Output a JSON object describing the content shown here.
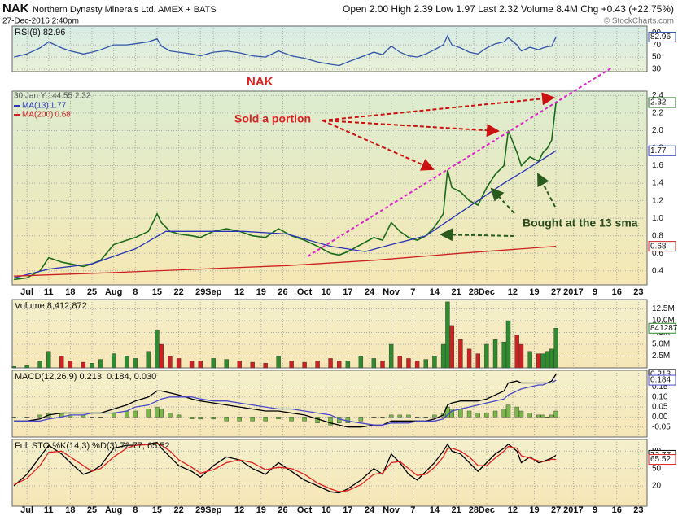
{
  "header": {
    "symbol": "NAK",
    "name": "Northern Dynasty Minerals Ltd. AMEX + BATS",
    "date": "27-Dec-2016 2:40pm",
    "quote": "Open 2.00 High 2.39 Low 1.97 Last 2.32 Volume 8.4M Chg +0.43 (+22.75%)",
    "source": "© StockCharts.com"
  },
  "chart_data": {
    "type": "stock",
    "x": [
      -3,
      0,
      3,
      5,
      8,
      10,
      13,
      15,
      17,
      20,
      23,
      25,
      28,
      30,
      31,
      33,
      35,
      38,
      40,
      43,
      46,
      49,
      52,
      55,
      58,
      61,
      64,
      67,
      70,
      72,
      74,
      77,
      80,
      82,
      84,
      86,
      88,
      90,
      92,
      94,
      96,
      97,
      98,
      100,
      102,
      104,
      106,
      108,
      110,
      111,
      113,
      114,
      116,
      118,
      119,
      120,
      121,
      122
    ],
    "xlim": [
      -3.4,
      143
    ],
    "xticks": [
      {
        "value": 0,
        "label": "Jul"
      },
      {
        "value": 5,
        "label": "11"
      },
      {
        "value": 10,
        "label": "18"
      },
      {
        "value": 15,
        "label": "25"
      },
      {
        "value": 20,
        "label": "Aug"
      },
      {
        "value": 25,
        "label": "8"
      },
      {
        "value": 30,
        "label": "15"
      },
      {
        "value": 35,
        "label": "22"
      },
      {
        "value": 40,
        "label": "29"
      },
      {
        "value": 43,
        "label": "Sep"
      },
      {
        "value": 49,
        "label": "12"
      },
      {
        "value": 54,
        "label": "19"
      },
      {
        "value": 59,
        "label": "26"
      },
      {
        "value": 64,
        "label": "Oct"
      },
      {
        "value": 69,
        "label": "10"
      },
      {
        "value": 74,
        "label": "17"
      },
      {
        "value": 79,
        "label": "24"
      },
      {
        "value": 84,
        "label": "Nov"
      },
      {
        "value": 89,
        "label": "7"
      },
      {
        "value": 94,
        "label": "14"
      },
      {
        "value": 99,
        "label": "21"
      },
      {
        "value": 103,
        "label": "28"
      },
      {
        "value": 106,
        "label": "Dec"
      },
      {
        "value": 112,
        "label": "12"
      },
      {
        "value": 117,
        "label": "19"
      },
      {
        "value": 122,
        "label": "27"
      },
      {
        "value": 126,
        "label": "2017"
      },
      {
        "value": 131,
        "label": "9"
      },
      {
        "value": 136,
        "label": "16"
      },
      {
        "value": 141,
        "label": "23"
      }
    ],
    "grid": true,
    "panels": [
      {
        "type": "line",
        "label": "RSI(9) 82.96",
        "ylim": [
          26,
          101
        ],
        "yticks": [
          30,
          50,
          70,
          90
        ],
        "series": [
          {
            "color": "#3355aa",
            "label_last": true,
            "values": [
              50,
              55,
              65,
              75,
              65,
              60,
              55,
              58,
              62,
              70,
              70,
              72,
              75,
              80,
              68,
              60,
              58,
              55,
              52,
              58,
              60,
              57,
              52,
              50,
              60,
              52,
              48,
              42,
              38,
              36,
              42,
              50,
              58,
              54,
              68,
              58,
              52,
              50,
              55,
              62,
              70,
              85,
              70,
              65,
              58,
              55,
              65,
              72,
              75,
              82,
              70,
              60,
              66,
              62,
              65,
              67,
              68,
              82.96
            ]
          }
        ]
      },
      {
        "type": "line",
        "ylim": [
          0.24,
          2.45
        ],
        "yticks": [
          0.4,
          0.6,
          0.8,
          {
            "value": 1.0,
            "label": "1.0"
          },
          1.2,
          1.4,
          1.6,
          1.8,
          {
            "value": 2.0,
            "label": "2.0"
          },
          2.2,
          2.4
        ],
        "annotations": [
          "NAK",
          "30 Jan Y:144.55 2.32",
          "Sold a portion",
          "Bought at the 13 sma"
        ],
        "series": [
          {
            "color": "#1a6b1a",
            "label_last": true,
            "values": [
              0.3,
              0.32,
              0.4,
              0.55,
              0.5,
              0.48,
              0.45,
              0.48,
              0.52,
              0.7,
              0.75,
              0.78,
              0.85,
              1.05,
              0.95,
              0.85,
              0.82,
              0.8,
              0.78,
              0.85,
              0.88,
              0.85,
              0.8,
              0.78,
              0.88,
              0.8,
              0.75,
              0.68,
              0.6,
              0.58,
              0.62,
              0.7,
              0.78,
              0.75,
              0.95,
              0.85,
              0.78,
              0.75,
              0.8,
              0.9,
              1.05,
              1.55,
              1.35,
              1.3,
              1.2,
              1.15,
              1.35,
              1.5,
              1.6,
              2.0,
              1.75,
              1.6,
              1.7,
              1.65,
              1.75,
              1.8,
              1.89,
              2.32
            ]
          },
          {
            "name": "MA(13)",
            "color": "#2a35b5",
            "label_last": true,
            "x": [
              -3,
              5,
              15,
              25,
              32,
              40,
              50,
              60,
              70,
              78,
              84,
              92,
              98,
              104,
              110,
              116,
              122
            ],
            "values": [
              0.32,
              0.42,
              0.48,
              0.65,
              0.85,
              0.85,
              0.85,
              0.82,
              0.68,
              0.62,
              0.7,
              0.8,
              1.0,
              1.2,
              1.4,
              1.58,
              1.77
            ]
          },
          {
            "name": "MA(200)",
            "color": "#cc2222",
            "label_last": true,
            "x": [
              -3,
              20,
              40,
              60,
              80,
              100,
              122
            ],
            "values": [
              0.34,
              0.38,
              0.42,
              0.46,
              0.52,
              0.6,
              0.68
            ]
          }
        ]
      },
      {
        "type": "bar",
        "label": "Volume 8,412,872",
        "ylim": [
          0,
          14500000
        ],
        "up_color": "#2e8b2e",
        "down_color": "#cc2222",
        "yticks": [
          {
            "value": 2500000,
            "label": "2.5M"
          },
          {
            "value": 5000000,
            "label": "5.0M"
          },
          {
            "value": 7500000,
            "label": "7.5M"
          },
          {
            "value": 10000000,
            "label": "10.0M"
          },
          {
            "value": 12500000,
            "label": "12.5M"
          }
        ],
        "series": [
          {
            "label_last": true,
            "color": "#2e8b2e",
            "values": [
              300000,
              500000,
              1500000,
              3500000,
              2500000,
              1500000,
              1200000,
              1000000,
              1800000,
              3000000,
              2500000,
              2000000,
              3500000,
              8000000,
              5000000,
              2500000,
              2000000,
              1500000,
              1500000,
              2000000,
              1800000,
              1500000,
              1200000,
              1000000,
              2500000,
              1500000,
              1200000,
              1500000,
              2000000,
              1500000,
              1500000,
              2500000,
              2000000,
              1500000,
              5000000,
              2500000,
              2000000,
              1500000,
              1800000,
              2500000,
              5000000,
              14000000,
              9000000,
              6000000,
              4000000,
              3000000,
              5000000,
              6000000,
              5500000,
              10000000,
              7000000,
              5000000,
              3500000,
              3000000,
              3000000,
              3500000,
              4000000,
              8412872
            ]
          }
        ]
      },
      {
        "type": "line",
        "label": "MACD(12,26,9) 0.213, 0.184, 0.030",
        "ylim": [
          -0.1,
          0.233
        ],
        "yticks": [
          -0.05,
          {
            "value": 0,
            "label": "0.00"
          },
          0.05,
          {
            "value": 0.1,
            "label": "0.10"
          },
          0.15
        ],
        "series": [
          {
            "type": "bar",
            "color": "#7ab84a",
            "values": [
              0,
              0,
              0.01,
              0.02,
              0.02,
              0.01,
              0.01,
              0,
              0,
              0.02,
              0.03,
              0.03,
              0.04,
              0.05,
              0.04,
              0.02,
              0.01,
              -0.01,
              -0.01,
              -0.01,
              -0.02,
              -0.02,
              -0.02,
              -0.02,
              -0.01,
              -0.02,
              -0.02,
              -0.03,
              -0.04,
              -0.03,
              -0.03,
              -0.02,
              0,
              0,
              0.01,
              0.01,
              0.01,
              0,
              0,
              0.01,
              0.02,
              0.05,
              0.04,
              0.04,
              0.03,
              0.02,
              0.02,
              0.03,
              0.04,
              0.06,
              0.05,
              0.03,
              0.02,
              0.01,
              0.01,
              0,
              0.01,
              0.03
            ]
          },
          {
            "color": "#000000",
            "label_last": true,
            "values": [
              -0.02,
              -0.02,
              -0.01,
              0.01,
              0.02,
              0.02,
              0.02,
              0.02,
              0.02,
              0.04,
              0.06,
              0.08,
              0.1,
              0.13,
              0.13,
              0.12,
              0.11,
              0.09,
              0.08,
              0.07,
              0.06,
              0.05,
              0.04,
              0.03,
              0.03,
              0.02,
              0.01,
              -0.01,
              -0.03,
              -0.04,
              -0.05,
              -0.05,
              -0.04,
              -0.04,
              -0.02,
              -0.02,
              -0.02,
              -0.02,
              -0.02,
              -0.01,
              0.01,
              0.06,
              0.07,
              0.08,
              0.08,
              0.08,
              0.09,
              0.11,
              0.13,
              0.17,
              0.18,
              0.17,
              0.17,
              0.17,
              0.17,
              0.17,
              0.18,
              0.213
            ]
          },
          {
            "color": "#4a4ac8",
            "label_last": true,
            "values": [
              -0.02,
              -0.02,
              -0.02,
              -0.01,
              0.0,
              0.01,
              0.01,
              0.02,
              0.02,
              0.02,
              0.03,
              0.05,
              0.06,
              0.08,
              0.09,
              0.1,
              0.1,
              0.1,
              0.09,
              0.08,
              0.08,
              0.07,
              0.06,
              0.05,
              0.04,
              0.04,
              0.03,
              0.02,
              0.01,
              -0.01,
              -0.02,
              -0.03,
              -0.04,
              -0.04,
              -0.03,
              -0.03,
              -0.03,
              -0.02,
              -0.02,
              -0.02,
              -0.01,
              0.01,
              0.03,
              0.04,
              0.05,
              0.06,
              0.07,
              0.08,
              0.09,
              0.11,
              0.13,
              0.14,
              0.15,
              0.16,
              0.16,
              0.17,
              0.17,
              0.184
            ]
          }
        ]
      },
      {
        "type": "line",
        "label": "Full STO %K(14,3) %D(3) 72.77, 65.52",
        "ylim": [
          -15,
          100
        ],
        "yticks": [
          20,
          50,
          80
        ],
        "series": [
          {
            "color": "#000000",
            "label_last": true,
            "values": [
              20,
              40,
              70,
              90,
              75,
              60,
              40,
              45,
              55,
              85,
              90,
              90,
              92,
              95,
              85,
              70,
              55,
              45,
              35,
              55,
              70,
              65,
              50,
              40,
              60,
              45,
              30,
              20,
              10,
              8,
              15,
              30,
              50,
              40,
              75,
              60,
              40,
              30,
              45,
              60,
              80,
              92,
              80,
              75,
              60,
              45,
              60,
              75,
              85,
              92,
              80,
              60,
              70,
              60,
              62,
              65,
              68,
              72.77
            ]
          },
          {
            "color": "#dd2222",
            "label_last": true,
            "values": [
              22,
              33,
              55,
              78,
              80,
              70,
              55,
              45,
              50,
              70,
              85,
              90,
              91,
              93,
              90,
              80,
              65,
              52,
              42,
              48,
              60,
              65,
              60,
              48,
              52,
              50,
              40,
              25,
              15,
              10,
              12,
              22,
              40,
              42,
              60,
              62,
              50,
              38,
              40,
              52,
              70,
              85,
              85,
              80,
              70,
              55,
              55,
              68,
              80,
              88,
              85,
              72,
              68,
              63,
              62,
              63,
              66,
              65.52
            ]
          }
        ]
      }
    ]
  }
}
